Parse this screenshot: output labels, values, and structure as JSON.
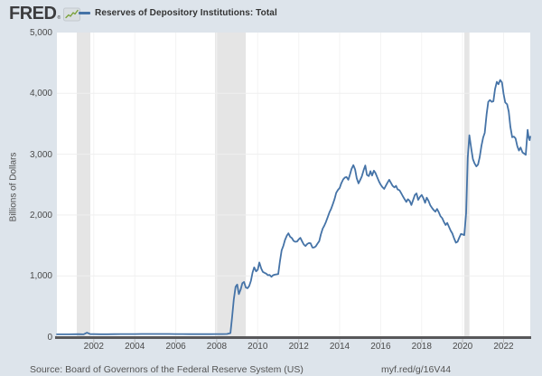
{
  "header": {
    "logo": "FRED",
    "logo_mark": "®",
    "legend_label": "Reserves of Depository Institutions: Total"
  },
  "footer": {
    "source": "Source: Board of Governors of the Federal Reserve System (US)",
    "link": "myf.red/g/16V44"
  },
  "colors": {
    "background": "#dde4eb",
    "plot_background": "#ffffff",
    "line": "#4573a7",
    "recession": "#e5e5e5",
    "axis": "#58585a",
    "grid_horizontal": "#efefef",
    "grid_vertical": "#f3f3f3",
    "tick": "#b5b5b5",
    "text": "#4a4a4a",
    "logo_green": "#7aa23a"
  },
  "chart_data": {
    "type": "line",
    "title": "Reserves of Depository Institutions: Total",
    "ylabel": "Billions of Dollars",
    "xlabel": "",
    "legend_position": "top-left",
    "grid": true,
    "xlim": [
      2000.2,
      2023.3
    ],
    "ylim": [
      0,
      5000
    ],
    "x_ticks": [
      2002,
      2004,
      2006,
      2008,
      2010,
      2012,
      2014,
      2016,
      2018,
      2020,
      2022
    ],
    "y_ticks": [
      0,
      1000,
      2000,
      3000,
      4000,
      5000
    ],
    "y_tick_labels": [
      "0",
      "1,000",
      "2,000",
      "3,000",
      "4,000",
      "5,000"
    ],
    "recessions": [
      [
        2001.17,
        2001.83
      ],
      [
        2007.92,
        2009.42
      ],
      [
        2020.08,
        2020.33
      ]
    ],
    "series": [
      {
        "name": "Reserves of Depository Institutions: Total",
        "units": "Billions of Dollars",
        "points": [
          [
            2000.2,
            39
          ],
          [
            2000.5,
            38
          ],
          [
            2000.8,
            38
          ],
          [
            2001.0,
            40
          ],
          [
            2001.25,
            41
          ],
          [
            2001.5,
            39
          ],
          [
            2001.67,
            66
          ],
          [
            2001.83,
            42
          ],
          [
            2002.0,
            41
          ],
          [
            2002.33,
            40
          ],
          [
            2002.67,
            40
          ],
          [
            2003.0,
            42
          ],
          [
            2003.33,
            43
          ],
          [
            2003.67,
            43
          ],
          [
            2004.0,
            43
          ],
          [
            2004.33,
            44
          ],
          [
            2004.67,
            45
          ],
          [
            2005.0,
            45
          ],
          [
            2005.33,
            44
          ],
          [
            2005.67,
            44
          ],
          [
            2006.0,
            43
          ],
          [
            2006.33,
            43
          ],
          [
            2006.67,
            42
          ],
          [
            2007.0,
            41
          ],
          [
            2007.33,
            41
          ],
          [
            2007.67,
            42
          ],
          [
            2008.0,
            43
          ],
          [
            2008.25,
            43
          ],
          [
            2008.5,
            45
          ],
          [
            2008.67,
            60
          ],
          [
            2008.75,
            315
          ],
          [
            2008.83,
            610
          ],
          [
            2008.92,
            820
          ],
          [
            2009.0,
            858
          ],
          [
            2009.08,
            700
          ],
          [
            2009.17,
            780
          ],
          [
            2009.25,
            880
          ],
          [
            2009.33,
            900
          ],
          [
            2009.42,
            810
          ],
          [
            2009.5,
            796
          ],
          [
            2009.58,
            830
          ],
          [
            2009.67,
            920
          ],
          [
            2009.75,
            1055
          ],
          [
            2009.83,
            1140
          ],
          [
            2009.92,
            1075
          ],
          [
            2010.0,
            1100
          ],
          [
            2010.08,
            1220
          ],
          [
            2010.17,
            1120
          ],
          [
            2010.25,
            1065
          ],
          [
            2010.33,
            1050
          ],
          [
            2010.42,
            1035
          ],
          [
            2010.5,
            1010
          ],
          [
            2010.58,
            1015
          ],
          [
            2010.67,
            985
          ],
          [
            2010.75,
            1010
          ],
          [
            2010.83,
            1020
          ],
          [
            2010.92,
            1025
          ],
          [
            2011.0,
            1030
          ],
          [
            2011.08,
            1230
          ],
          [
            2011.17,
            1420
          ],
          [
            2011.25,
            1495
          ],
          [
            2011.33,
            1590
          ],
          [
            2011.42,
            1660
          ],
          [
            2011.5,
            1700
          ],
          [
            2011.58,
            1645
          ],
          [
            2011.67,
            1620
          ],
          [
            2011.75,
            1575
          ],
          [
            2011.83,
            1560
          ],
          [
            2011.92,
            1565
          ],
          [
            2012.0,
            1600
          ],
          [
            2012.08,
            1625
          ],
          [
            2012.17,
            1565
          ],
          [
            2012.25,
            1515
          ],
          [
            2012.33,
            1490
          ],
          [
            2012.42,
            1525
          ],
          [
            2012.5,
            1540
          ],
          [
            2012.58,
            1535
          ],
          [
            2012.67,
            1465
          ],
          [
            2012.75,
            1467
          ],
          [
            2012.83,
            1485
          ],
          [
            2012.92,
            1530
          ],
          [
            2013.0,
            1570
          ],
          [
            2013.08,
            1680
          ],
          [
            2013.17,
            1775
          ],
          [
            2013.25,
            1825
          ],
          [
            2013.33,
            1885
          ],
          [
            2013.42,
            1970
          ],
          [
            2013.5,
            2045
          ],
          [
            2013.58,
            2100
          ],
          [
            2013.67,
            2185
          ],
          [
            2013.75,
            2265
          ],
          [
            2013.83,
            2365
          ],
          [
            2013.92,
            2415
          ],
          [
            2014.0,
            2445
          ],
          [
            2014.08,
            2525
          ],
          [
            2014.17,
            2585
          ],
          [
            2014.25,
            2615
          ],
          [
            2014.33,
            2625
          ],
          [
            2014.42,
            2580
          ],
          [
            2014.5,
            2665
          ],
          [
            2014.58,
            2760
          ],
          [
            2014.67,
            2820
          ],
          [
            2014.75,
            2750
          ],
          [
            2014.83,
            2605
          ],
          [
            2014.92,
            2520
          ],
          [
            2015.0,
            2575
          ],
          [
            2015.08,
            2635
          ],
          [
            2015.17,
            2740
          ],
          [
            2015.25,
            2815
          ],
          [
            2015.33,
            2660
          ],
          [
            2015.42,
            2640
          ],
          [
            2015.5,
            2720
          ],
          [
            2015.58,
            2650
          ],
          [
            2015.67,
            2730
          ],
          [
            2015.75,
            2690
          ],
          [
            2015.83,
            2620
          ],
          [
            2015.92,
            2550
          ],
          [
            2016.0,
            2500
          ],
          [
            2016.08,
            2460
          ],
          [
            2016.17,
            2430
          ],
          [
            2016.25,
            2480
          ],
          [
            2016.33,
            2530
          ],
          [
            2016.42,
            2580
          ],
          [
            2016.5,
            2530
          ],
          [
            2016.58,
            2480
          ],
          [
            2016.67,
            2455
          ],
          [
            2016.75,
            2480
          ],
          [
            2016.83,
            2420
          ],
          [
            2016.92,
            2405
          ],
          [
            2017.0,
            2360
          ],
          [
            2017.08,
            2310
          ],
          [
            2017.17,
            2260
          ],
          [
            2017.25,
            2215
          ],
          [
            2017.33,
            2260
          ],
          [
            2017.42,
            2230
          ],
          [
            2017.5,
            2165
          ],
          [
            2017.58,
            2240
          ],
          [
            2017.67,
            2330
          ],
          [
            2017.75,
            2355
          ],
          [
            2017.83,
            2250
          ],
          [
            2017.92,
            2300
          ],
          [
            2018.0,
            2330
          ],
          [
            2018.08,
            2280
          ],
          [
            2018.17,
            2200
          ],
          [
            2018.25,
            2285
          ],
          [
            2018.33,
            2235
          ],
          [
            2018.42,
            2160
          ],
          [
            2018.5,
            2120
          ],
          [
            2018.58,
            2085
          ],
          [
            2018.67,
            2055
          ],
          [
            2018.75,
            2100
          ],
          [
            2018.83,
            2050
          ],
          [
            2018.92,
            1980
          ],
          [
            2019.0,
            1950
          ],
          [
            2019.08,
            1890
          ],
          [
            2019.17,
            1835
          ],
          [
            2019.25,
            1870
          ],
          [
            2019.33,
            1810
          ],
          [
            2019.42,
            1740
          ],
          [
            2019.5,
            1695
          ],
          [
            2019.58,
            1620
          ],
          [
            2019.67,
            1545
          ],
          [
            2019.75,
            1560
          ],
          [
            2019.83,
            1625
          ],
          [
            2019.92,
            1690
          ],
          [
            2020.0,
            1680
          ],
          [
            2020.08,
            1670
          ],
          [
            2020.17,
            2030
          ],
          [
            2020.25,
            2940
          ],
          [
            2020.33,
            3310
          ],
          [
            2020.42,
            3090
          ],
          [
            2020.5,
            2920
          ],
          [
            2020.58,
            2850
          ],
          [
            2020.67,
            2800
          ],
          [
            2020.75,
            2830
          ],
          [
            2020.83,
            2950
          ],
          [
            2020.92,
            3140
          ],
          [
            2021.0,
            3270
          ],
          [
            2021.08,
            3350
          ],
          [
            2021.17,
            3660
          ],
          [
            2021.25,
            3860
          ],
          [
            2021.33,
            3890
          ],
          [
            2021.42,
            3860
          ],
          [
            2021.5,
            3870
          ],
          [
            2021.58,
            4070
          ],
          [
            2021.67,
            4190
          ],
          [
            2021.75,
            4150
          ],
          [
            2021.83,
            4220
          ],
          [
            2021.92,
            4180
          ],
          [
            2022.0,
            3990
          ],
          [
            2022.08,
            3850
          ],
          [
            2022.17,
            3820
          ],
          [
            2022.25,
            3700
          ],
          [
            2022.33,
            3450
          ],
          [
            2022.42,
            3280
          ],
          [
            2022.5,
            3290
          ],
          [
            2022.58,
            3260
          ],
          [
            2022.67,
            3130
          ],
          [
            2022.75,
            3060
          ],
          [
            2022.83,
            3110
          ],
          [
            2022.92,
            3030
          ],
          [
            2023.0,
            3010
          ],
          [
            2023.08,
            2990
          ],
          [
            2023.17,
            3400
          ],
          [
            2023.22,
            3280
          ],
          [
            2023.27,
            3230
          ],
          [
            2023.3,
            3290
          ]
        ]
      }
    ]
  }
}
